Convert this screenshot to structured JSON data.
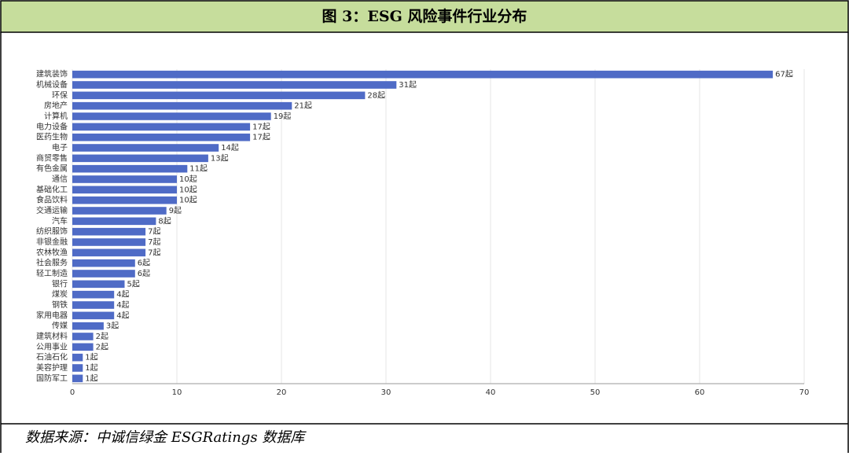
{
  "chart_data": {
    "type": "bar",
    "orientation": "horizontal",
    "title": "图 3：ESG 风险事件行业分布",
    "source": "数据来源：中诚信绿金 ESGRatings 数据库",
    "categories": [
      "建筑装饰",
      "机械设备",
      "环保",
      "房地产",
      "计算机",
      "电力设备",
      "医药生物",
      "电子",
      "商贸零售",
      "有色金属",
      "通信",
      "基础化工",
      "食品饮料",
      "交通运输",
      "汽车",
      "纺织服饰",
      "非银金融",
      "农林牧渔",
      "社会服务",
      "轻工制造",
      "银行",
      "煤炭",
      "钢铁",
      "家用电器",
      "传媒",
      "建筑材料",
      "公用事业",
      "石油石化",
      "美容护理",
      "国防军工"
    ],
    "values": [
      67,
      31,
      28,
      21,
      19,
      17,
      17,
      14,
      13,
      11,
      10,
      10,
      10,
      9,
      8,
      7,
      7,
      7,
      6,
      6,
      5,
      4,
      4,
      4,
      3,
      2,
      2,
      1,
      1,
      1
    ],
    "value_labels": [
      "67起",
      "31起",
      "28起",
      "21起",
      "19起",
      "17起",
      "17起",
      "14起",
      "13起",
      "11起",
      "10起",
      "10起",
      "10起",
      "9起",
      "8起",
      "7起",
      "7起",
      "7起",
      "6起",
      "6起",
      "5起",
      "4起",
      "4起",
      "4起",
      "3起",
      "2起",
      "2起",
      "1起",
      "1起",
      "1起"
    ],
    "color": "#4f6bc6",
    "xlim": [
      0,
      70
    ],
    "xticks": [
      0,
      10,
      20,
      30,
      40,
      50,
      60,
      70
    ],
    "grid": true
  }
}
